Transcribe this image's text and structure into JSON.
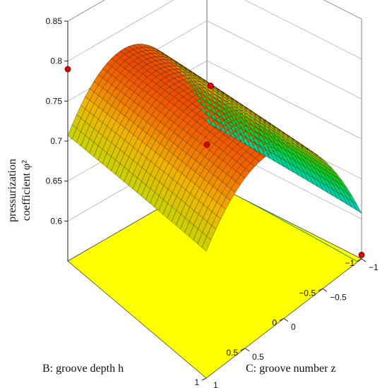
{
  "chart_data": {
    "type": "surface3d",
    "title": "",
    "zlabel_line1": "pressurization",
    "zlabel_line2": "coefficient φ²",
    "xlabel": "B: groove depth h",
    "ylabel": "C: groove number z",
    "x_ticks": [
      "1",
      "0.5",
      "0",
      "−0.5",
      "−1"
    ],
    "y_ticks": [
      "−1",
      "−0.5",
      "0",
      "0.5",
      "1"
    ],
    "z_ticks": [
      "0.85",
      "0.8",
      "0.75",
      "0.7",
      "0.65",
      "0.6"
    ],
    "xlim": [
      -1,
      1
    ],
    "ylim": [
      -1,
      1
    ],
    "zlim": [
      0.55,
      0.85
    ],
    "colormap": [
      "#0000c8",
      "#00b4ff",
      "#00d2a0",
      "#00d23c",
      "#3cc800",
      "#c8d200",
      "#f0b400",
      "#f05a00",
      "#c80000"
    ],
    "floor_color": "#ffff00",
    "design_points": [
      {
        "x": 1,
        "y": -1,
        "z": 0.79
      },
      {
        "x": 0,
        "y": 0,
        "z": 0.78
      },
      {
        "x": -1,
        "y": 1,
        "z": 0.555
      },
      {
        "x": -1,
        "y": -1,
        "z": 0.595
      }
    ]
  }
}
